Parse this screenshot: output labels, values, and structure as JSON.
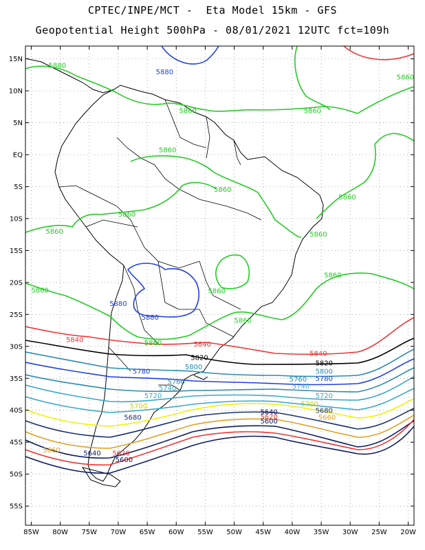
{
  "header": {
    "line1": "CPTEC/INPE/MCT -  Eta Model 15km - GFS",
    "line2": "Geopotential Height 500hPa - 08/01/2021 12UTC fct=109h"
  },
  "map": {
    "lon_range": [
      -86,
      -19
    ],
    "lat_range": [
      -58,
      17
    ],
    "lat_ticks": [
      {
        "v": 15,
        "t": "15N"
      },
      {
        "v": 10,
        "t": "10N"
      },
      {
        "v": 5,
        "t": "5N"
      },
      {
        "v": 0,
        "t": "EQ"
      },
      {
        "v": -5,
        "t": "5S"
      },
      {
        "v": -10,
        "t": "10S"
      },
      {
        "v": -15,
        "t": "15S"
      },
      {
        "v": -20,
        "t": "20S"
      },
      {
        "v": -25,
        "t": "25S"
      },
      {
        "v": -30,
        "t": "30S"
      },
      {
        "v": -35,
        "t": "35S"
      },
      {
        "v": -40,
        "t": "40S"
      },
      {
        "v": -45,
        "t": "45S"
      },
      {
        "v": -50,
        "t": "50S"
      },
      {
        "v": -55,
        "t": "55S"
      }
    ],
    "lon_ticks": [
      {
        "v": -85,
        "t": "85W"
      },
      {
        "v": -80,
        "t": "80W"
      },
      {
        "v": -75,
        "t": "75W"
      },
      {
        "v": -70,
        "t": "70W"
      },
      {
        "v": -65,
        "t": "65W"
      },
      {
        "v": -60,
        "t": "60W"
      },
      {
        "v": -55,
        "t": "55W"
      },
      {
        "v": -50,
        "t": "50W"
      },
      {
        "v": -45,
        "t": "45W"
      },
      {
        "v": -40,
        "t": "40W"
      },
      {
        "v": -35,
        "t": "35W"
      },
      {
        "v": -30,
        "t": "30W"
      },
      {
        "v": -25,
        "t": "25W"
      },
      {
        "v": -20,
        "t": "20W"
      }
    ],
    "grid": "dotted",
    "contours": [
      {
        "value": "5880",
        "color": "#1f3fe0"
      },
      {
        "value": "5860",
        "color": "#22cc22"
      },
      {
        "value": "5840",
        "color": "#ee3333"
      },
      {
        "value": "5820",
        "color": "#000000"
      },
      {
        "value": "5800",
        "color": "#2a8ab0"
      },
      {
        "value": "5780",
        "color": "#1f3fe0"
      },
      {
        "value": "5760",
        "color": "#2a8ab0"
      },
      {
        "value": "5740",
        "color": "#3aa8c8"
      },
      {
        "value": "5720",
        "color": "#3aa8c8"
      },
      {
        "value": "5700",
        "color": "#f2f200"
      },
      {
        "value": "5680",
        "color": "#1a3070"
      },
      {
        "value": "5660",
        "color": "#e0a020"
      },
      {
        "value": "5640",
        "color": "#0a1a60"
      },
      {
        "value": "5620",
        "color": "#ee3333"
      },
      {
        "value": "5600",
        "color": "#0a1a60"
      }
    ],
    "labels": [
      {
        "t": "5880",
        "lon": -80.5,
        "lat": 13.6,
        "c": "#22cc22"
      },
      {
        "t": "5880",
        "lon": -62,
        "lat": 12.6,
        "c": "#1f3fe0"
      },
      {
        "t": "5860",
        "lon": -58,
        "lat": 6.5,
        "c": "#22cc22"
      },
      {
        "t": "5860",
        "lon": -36.5,
        "lat": 6.5,
        "c": "#22cc22"
      },
      {
        "t": "5860",
        "lon": -20.5,
        "lat": 11.8,
        "c": "#22cc22"
      },
      {
        "t": "5860",
        "lon": -61.5,
        "lat": 0.4,
        "c": "#22cc22"
      },
      {
        "t": "5860",
        "lon": -52,
        "lat": -5.8,
        "c": "#22cc22"
      },
      {
        "t": "5860",
        "lon": -30.5,
        "lat": -7,
        "c": "#22cc22"
      },
      {
        "t": "5860",
        "lon": -68.5,
        "lat": -9.7,
        "c": "#22cc22"
      },
      {
        "t": "5860",
        "lon": -81,
        "lat": -12.4,
        "c": "#22cc22"
      },
      {
        "t": "5860",
        "lon": -35.5,
        "lat": -12.8,
        "c": "#22cc22"
      },
      {
        "t": "5860",
        "lon": -33,
        "lat": -19.2,
        "c": "#22cc22"
      },
      {
        "t": "5860",
        "lon": -83.5,
        "lat": -21.6,
        "c": "#22cc22"
      },
      {
        "t": "5860",
        "lon": -53,
        "lat": -21.7,
        "c": "#22cc22"
      },
      {
        "t": "5860",
        "lon": -48.5,
        "lat": -26.3,
        "c": "#22cc22"
      },
      {
        "t": "5880",
        "lon": -70,
        "lat": -23.7,
        "c": "#1f3fe0"
      },
      {
        "t": "5880",
        "lon": -64.5,
        "lat": -25.8,
        "c": "#1f3fe0"
      },
      {
        "t": "5860",
        "lon": -64,
        "lat": -29.8,
        "c": "#22cc22"
      },
      {
        "t": "5840",
        "lon": -77.5,
        "lat": -29.3,
        "c": "#ee3333"
      },
      {
        "t": "5840",
        "lon": -55.5,
        "lat": -30,
        "c": "#ee3333"
      },
      {
        "t": "5840",
        "lon": -35.5,
        "lat": -31.5,
        "c": "#ee3333"
      },
      {
        "t": "5820",
        "lon": -56,
        "lat": -32.1,
        "c": "#000000"
      },
      {
        "t": "5820",
        "lon": -34.5,
        "lat": -33,
        "c": "#000000"
      },
      {
        "t": "5800",
        "lon": -57,
        "lat": -33.6,
        "c": "#2a8ab0"
      },
      {
        "t": "5800",
        "lon": -34.5,
        "lat": -34.3,
        "c": "#2a8ab0"
      },
      {
        "t": "5780",
        "lon": -66,
        "lat": -34.3,
        "c": "#1f3fe0"
      },
      {
        "t": "5780",
        "lon": -34.5,
        "lat": -35.4,
        "c": "#1f3fe0"
      },
      {
        "t": "5760",
        "lon": -60,
        "lat": -35.9,
        "c": "#2a8ab0"
      },
      {
        "t": "5760",
        "lon": -39,
        "lat": -35.5,
        "c": "#2a8ab0"
      },
      {
        "t": "5740",
        "lon": -61.5,
        "lat": -36.9,
        "c": "#3aa8c8"
      },
      {
        "t": "5740",
        "lon": -38.5,
        "lat": -36.6,
        "c": "#3aa8c8"
      },
      {
        "t": "5720",
        "lon": -64,
        "lat": -38.1,
        "c": "#3aa8c8"
      },
      {
        "t": "5720",
        "lon": -34.5,
        "lat": -38.1,
        "c": "#3aa8c8"
      },
      {
        "t": "5700",
        "lon": -66.5,
        "lat": -39.7,
        "c": "#cccc00"
      },
      {
        "t": "5700",
        "lon": -37,
        "lat": -39.4,
        "c": "#cccc00"
      },
      {
        "t": "5680",
        "lon": -67.5,
        "lat": -41.5,
        "c": "#1a3070"
      },
      {
        "t": "5680",
        "lon": -34.5,
        "lat": -40.4,
        "c": "#1a3070"
      },
      {
        "t": "5660",
        "lon": -34,
        "lat": -41.5,
        "c": "#e0a020"
      },
      {
        "t": "5660",
        "lon": -81.5,
        "lat": -46.6,
        "c": "#e0a020"
      },
      {
        "t": "5640",
        "lon": -44,
        "lat": -40.6,
        "c": "#0a1a60"
      },
      {
        "t": "5640",
        "lon": -74.5,
        "lat": -47.1,
        "c": "#0a1a60"
      },
      {
        "t": "5620",
        "lon": -44,
        "lat": -41.4,
        "c": "#ee3333"
      },
      {
        "t": "5620",
        "lon": -69.5,
        "lat": -47.1,
        "c": "#ee3333"
      },
      {
        "t": "5600",
        "lon": -44,
        "lat": -42.1,
        "c": "#0a1a60"
      },
      {
        "t": "5600",
        "lon": -69,
        "lat": -48.1,
        "c": "#0a1a60"
      }
    ]
  }
}
